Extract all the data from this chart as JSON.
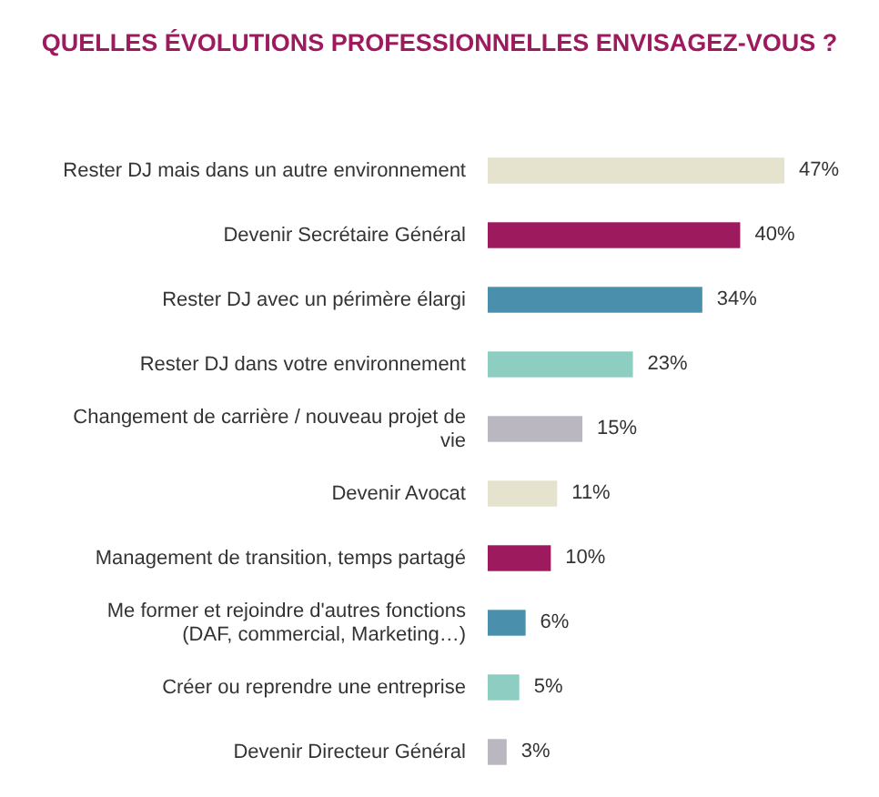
{
  "chart_data": {
    "type": "bar",
    "orientation": "horizontal",
    "title": "QUELLES ÉVOLUTIONS PROFESSIONNELLES ENVISAGEZ-VOUS ?",
    "categories": [
      "Rester DJ mais dans un autre environnement",
      "Devenir Secrétaire Général",
      "Rester DJ avec un périmère élargi",
      "Rester DJ dans votre environnement",
      "Changement de carrière / nouveau projet de vie",
      "Devenir Avocat",
      "Management de transition, temps partagé",
      "Me former et rejoindre d'autres fonctions (DAF, commercial, Marketing…)",
      "Créer ou reprendre une entreprise",
      "Devenir Directeur Général"
    ],
    "values": [
      47,
      40,
      34,
      23,
      15,
      11,
      10,
      6,
      5,
      3
    ],
    "colors": [
      "#e5e2cd",
      "#9e1a5e",
      "#4a8fab",
      "#8ecdc1",
      "#bab7c0",
      "#e5e2cd",
      "#9e1a5e",
      "#4a8fab",
      "#8ecdc1",
      "#bab7c0"
    ],
    "value_labels": [
      "47%",
      "40%",
      "34%",
      "23%",
      "15%",
      "11%",
      "10%",
      "6%",
      "5%",
      "3%"
    ]
  }
}
